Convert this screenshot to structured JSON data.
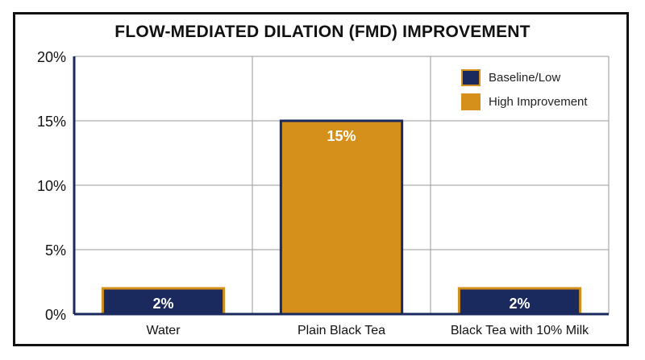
{
  "chart_data": {
    "type": "bar",
    "title": "FLOW-MEDIATED DILATION (FMD) IMPROVEMENT",
    "xlabel": "",
    "ylabel": "",
    "categories": [
      "Water",
      "Plain Black Tea",
      "Black Tea with 10% Milk"
    ],
    "values": [
      2,
      15,
      2
    ],
    "value_labels": [
      "2%",
      "15%",
      "2%"
    ],
    "bar_groups": [
      "Baseline/Low",
      "High Improvement",
      "Baseline/Low"
    ],
    "ylim": [
      0,
      20
    ],
    "yticks": [
      0,
      5,
      10,
      15,
      20
    ],
    "ytick_labels": [
      "0%",
      "5%",
      "10%",
      "15%",
      "20%"
    ],
    "grid": true,
    "legend_position": "top-right",
    "legend": [
      {
        "label": "Baseline/Low",
        "color": "#1b2a5e"
      },
      {
        "label": "High Improvement",
        "color": "#d4901a"
      }
    ],
    "colors": {
      "navy": "#1b2a5e",
      "gold": "#d4901a",
      "grid": "#9a9a9a",
      "axis": "#1b2a5e"
    }
  }
}
